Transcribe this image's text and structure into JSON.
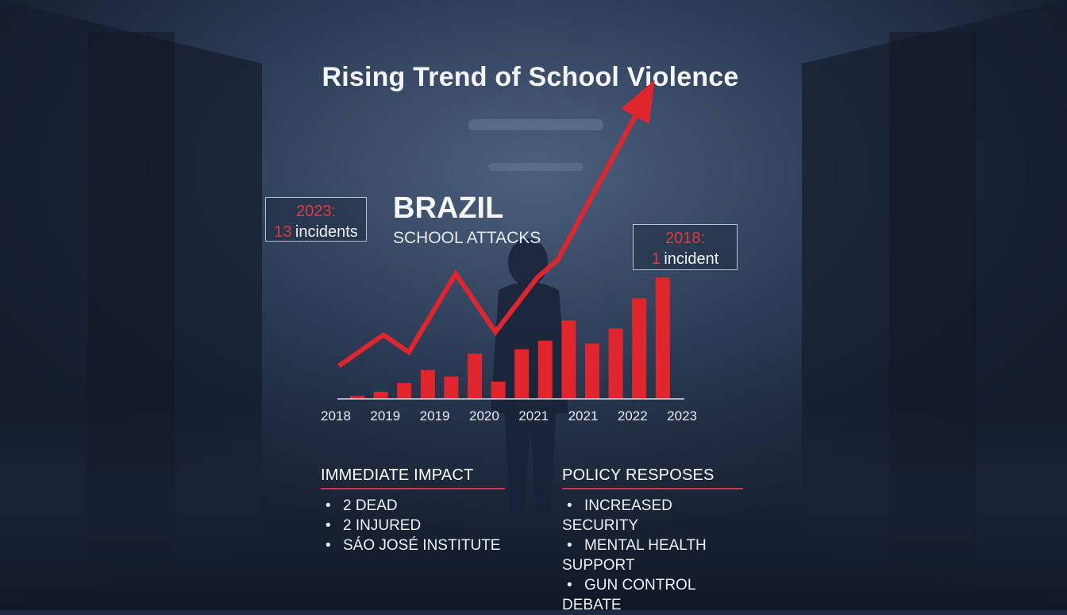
{
  "title": "Rising Trend of School Violence",
  "brand": {
    "country": "BRAZIL",
    "subtitle": "SCHOOL ATTACKS"
  },
  "callouts": {
    "left": {
      "year": "2023:",
      "count": "13",
      "label": "incidents"
    },
    "right": {
      "year": "2018:",
      "count": "1",
      "label": "incident"
    }
  },
  "chart_data": {
    "type": "bar",
    "x_tick_labels": [
      "2018",
      "2019",
      "2019",
      "2020",
      "2021",
      "2021",
      "2022",
      "2023"
    ],
    "bar_values": [
      0.4,
      1.0,
      2.2,
      4.0,
      3.1,
      6.3,
      2.4,
      6.9,
      8.1,
      10.9,
      7.7,
      9.8,
      14.0,
      16.9
    ],
    "trend_line": [
      4.6,
      8.9,
      6.5,
      17.4,
      9.3,
      16.9,
      19.4,
      39.3
    ],
    "colors": {
      "bars": "#e0262c",
      "trend": "#e0262c",
      "axis": "#d8dde5"
    }
  },
  "panels": {
    "impact": {
      "heading": "IMMEDIATE IMPACT",
      "items": [
        "2 DEAD",
        "2 INJURED",
        "SÁO JOSÉ INSTITUTE"
      ]
    },
    "policy": {
      "heading": "POLICY RESPOSES",
      "items": [
        "INCREASED SECURITY",
        "MENTAL HEALTH SUPPORT",
        "GUN CONTROL DEBATE"
      ]
    }
  },
  "bullet": "•"
}
